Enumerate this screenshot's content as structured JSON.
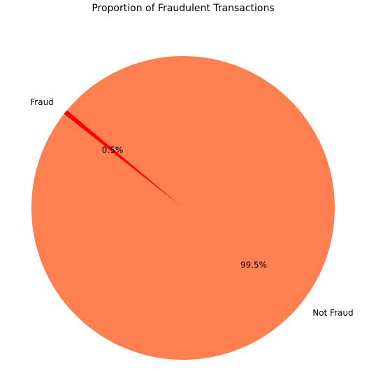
{
  "chart_data": {
    "type": "pie",
    "title": "Proportion of Fraudulent Transactions",
    "slices": [
      {
        "label": "Not Fraud",
        "value": 99.5,
        "pct_label": "99.5%",
        "color": "#FF7F50"
      },
      {
        "label": "Fraud",
        "value": 0.5,
        "pct_label": "0.5%",
        "color": "#FF0000"
      }
    ],
    "start_angle": 140,
    "legend": "none"
  }
}
